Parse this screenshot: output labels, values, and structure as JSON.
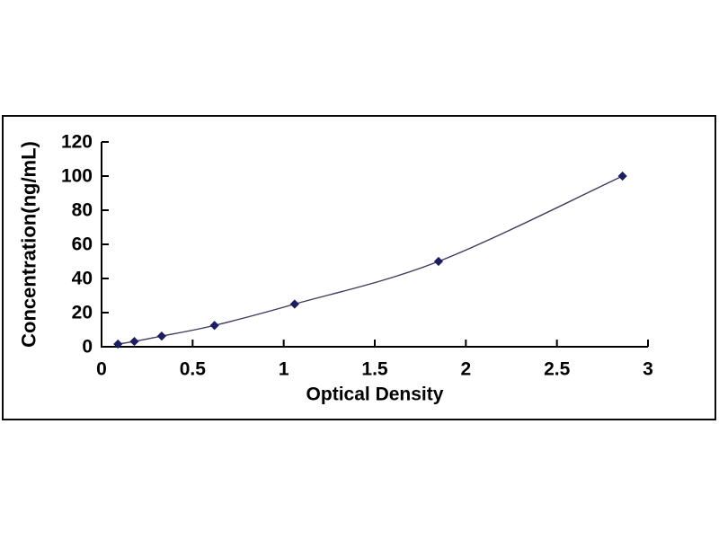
{
  "figure": {
    "background_color": "#ffffff",
    "frame_border_color": "#0a0a0a"
  },
  "chart_data": {
    "type": "line",
    "title": "",
    "xlabel": "Optical Density",
    "ylabel": "Concentration(ng/mL)",
    "x": [
      0.09,
      0.18,
      0.33,
      0.62,
      1.06,
      1.85,
      2.86
    ],
    "y": [
      1.56,
      3.12,
      6.25,
      12.5,
      25,
      50,
      100
    ],
    "xlim": [
      0,
      3
    ],
    "ylim": [
      0,
      120
    ],
    "x_ticks": [
      0,
      0.5,
      1,
      1.5,
      2,
      2.5,
      3
    ],
    "x_tick_labels": [
      "0",
      "0.5",
      "1",
      "1.5",
      "2",
      "2.5",
      "3"
    ],
    "y_ticks": [
      0,
      20,
      40,
      60,
      80,
      100,
      120
    ],
    "y_tick_labels": [
      "0",
      "20",
      "40",
      "60",
      "80",
      "100",
      "120"
    ],
    "grid": false,
    "legend_position": "none",
    "marker": "diamond",
    "line_color": "#3c3c5e",
    "marker_color": "#1d1d64",
    "axis_color": "#000000",
    "text_color": "#000000"
  }
}
